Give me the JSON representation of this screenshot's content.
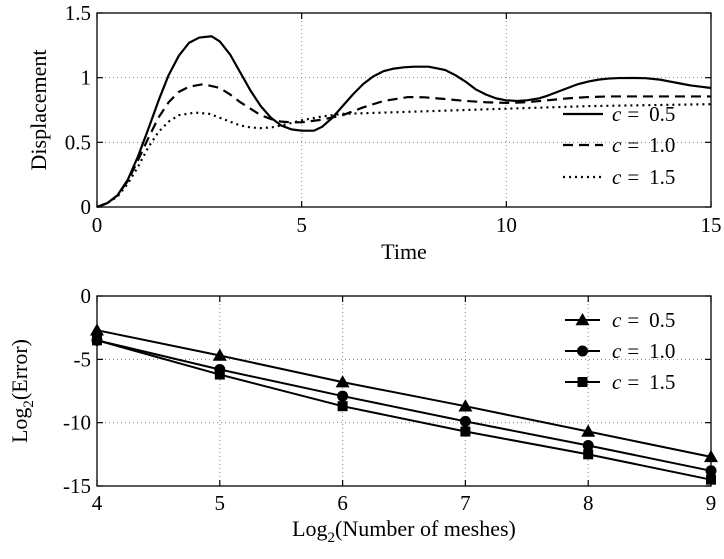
{
  "chart_data": [
    {
      "type": "line",
      "xlabel": "Time",
      "ylabel": "Displacement",
      "xlim": [
        0,
        15
      ],
      "ylim": [
        0,
        1.5
      ],
      "xticks": [
        0,
        5,
        10,
        15
      ],
      "yticks": [
        0,
        0.5,
        1,
        1.5
      ],
      "xtick_labels": [
        "0",
        "5",
        "10",
        "15"
      ],
      "ytick_labels": [
        "0",
        "0.5",
        "1",
        "1.5"
      ],
      "grid": "dotted",
      "legend_position": "right",
      "series": [
        {
          "name": "c = 0.5",
          "var": "c",
          "eq": "=",
          "val": "0.5",
          "dash": "solid",
          "x": [
            0,
            0.25,
            0.5,
            0.75,
            1.0,
            1.25,
            1.5,
            1.75,
            2.0,
            2.25,
            2.5,
            2.8,
            3.0,
            3.25,
            3.5,
            3.75,
            4.0,
            4.25,
            4.5,
            4.75,
            5.0,
            5.3,
            5.5,
            5.75,
            6.0,
            6.25,
            6.5,
            6.75,
            7.0,
            7.25,
            7.5,
            7.75,
            8.1,
            8.5,
            8.75,
            9.0,
            9.25,
            9.5,
            9.75,
            10.0,
            10.25,
            10.5,
            10.8,
            11.0,
            11.25,
            11.5,
            11.75,
            12.0,
            12.25,
            12.5,
            12.75,
            13.0,
            13.4,
            13.75,
            14.0,
            14.25,
            14.5,
            14.75,
            15.0
          ],
          "y": [
            0,
            0.03,
            0.09,
            0.21,
            0.39,
            0.6,
            0.82,
            1.02,
            1.17,
            1.27,
            1.31,
            1.32,
            1.28,
            1.18,
            1.04,
            0.9,
            0.78,
            0.69,
            0.63,
            0.6,
            0.59,
            0.59,
            0.62,
            0.69,
            0.78,
            0.87,
            0.95,
            1.01,
            1.05,
            1.07,
            1.08,
            1.085,
            1.085,
            1.06,
            1.02,
            0.97,
            0.91,
            0.87,
            0.84,
            0.825,
            0.82,
            0.825,
            0.84,
            0.86,
            0.89,
            0.92,
            0.95,
            0.97,
            0.985,
            0.993,
            0.997,
            0.998,
            0.996,
            0.985,
            0.97,
            0.955,
            0.94,
            0.93,
            0.92
          ]
        },
        {
          "name": "c = 1.0",
          "var": "c",
          "eq": "=",
          "val": "1.0",
          "dash": "dashed",
          "x": [
            0,
            0.25,
            0.5,
            0.75,
            1.0,
            1.25,
            1.5,
            1.75,
            2.0,
            2.25,
            2.6,
            3.0,
            3.25,
            3.5,
            3.75,
            4.0,
            4.25,
            4.5,
            4.75,
            5.0,
            5.5,
            6.0,
            6.5,
            7.0,
            7.6,
            8.0,
            8.5,
            9.0,
            9.5,
            10.0,
            10.5,
            11.0,
            11.5,
            12.0,
            12.5,
            13.0,
            13.5,
            14.0,
            14.5,
            15.0
          ],
          "y": [
            0,
            0.03,
            0.09,
            0.2,
            0.36,
            0.53,
            0.69,
            0.81,
            0.89,
            0.93,
            0.95,
            0.92,
            0.87,
            0.81,
            0.76,
            0.71,
            0.68,
            0.66,
            0.655,
            0.655,
            0.675,
            0.71,
            0.77,
            0.82,
            0.85,
            0.848,
            0.835,
            0.82,
            0.81,
            0.805,
            0.81,
            0.825,
            0.84,
            0.85,
            0.855,
            0.855,
            0.855,
            0.855,
            0.855,
            0.855
          ]
        },
        {
          "name": "c = 1.5",
          "var": "c",
          "eq": "=",
          "val": "1.5",
          "dash": "dotted",
          "x": [
            0,
            0.25,
            0.5,
            0.75,
            1.0,
            1.25,
            1.5,
            1.75,
            2.0,
            2.4,
            2.75,
            3.0,
            3.25,
            3.5,
            3.75,
            4.0,
            4.25,
            4.5,
            4.75,
            5.0,
            5.5,
            6.0,
            6.5,
            7.0,
            7.5,
            8.0,
            8.5,
            9.0,
            9.5,
            10.0,
            11.0,
            12.0,
            13.0,
            14.0,
            15.0
          ],
          "y": [
            0,
            0.03,
            0.08,
            0.18,
            0.31,
            0.46,
            0.58,
            0.66,
            0.71,
            0.73,
            0.72,
            0.69,
            0.66,
            0.63,
            0.615,
            0.61,
            0.615,
            0.63,
            0.65,
            0.67,
            0.7,
            0.72,
            0.725,
            0.73,
            0.735,
            0.74,
            0.745,
            0.75,
            0.755,
            0.76,
            0.77,
            0.78,
            0.785,
            0.79,
            0.795
          ]
        }
      ]
    },
    {
      "type": "line",
      "xlabel_main": "Log",
      "xlabel_sub": "2",
      "xlabel_rest": "(Number of meshes)",
      "ylabel_main": "Log",
      "ylabel_sub": "2",
      "ylabel_rest": "(Error)",
      "xlim": [
        4,
        9
      ],
      "ylim": [
        -15,
        0
      ],
      "xticks": [
        4,
        5,
        6,
        7,
        8,
        9
      ],
      "yticks": [
        0,
        -5,
        -10,
        -15
      ],
      "xtick_labels": [
        "4",
        "5",
        "6",
        "7",
        "8",
        "9"
      ],
      "ytick_labels": [
        "0",
        "-5",
        "-10",
        "-15"
      ],
      "grid": "dotted",
      "legend_position": "top-right",
      "series": [
        {
          "name": "c = 0.5",
          "var": "c",
          "eq": "=",
          "val": "0.5",
          "marker": "triangle",
          "x": [
            4,
            5,
            6,
            7,
            8,
            9
          ],
          "y": [
            -2.7,
            -4.7,
            -6.8,
            -8.7,
            -10.7,
            -12.7
          ]
        },
        {
          "name": "c = 1.0",
          "var": "c",
          "eq": "=",
          "val": "1.0",
          "marker": "circle",
          "x": [
            4,
            5,
            6,
            7,
            8,
            9
          ],
          "y": [
            -3.5,
            -5.8,
            -7.9,
            -9.9,
            -11.8,
            -13.8
          ]
        },
        {
          "name": "c = 1.5",
          "var": "c",
          "eq": "=",
          "val": "1.5",
          "marker": "square",
          "x": [
            4,
            5,
            6,
            7,
            8,
            9
          ],
          "y": [
            -3.5,
            -6.2,
            -8.7,
            -10.7,
            -12.5,
            -14.5
          ]
        }
      ]
    }
  ]
}
